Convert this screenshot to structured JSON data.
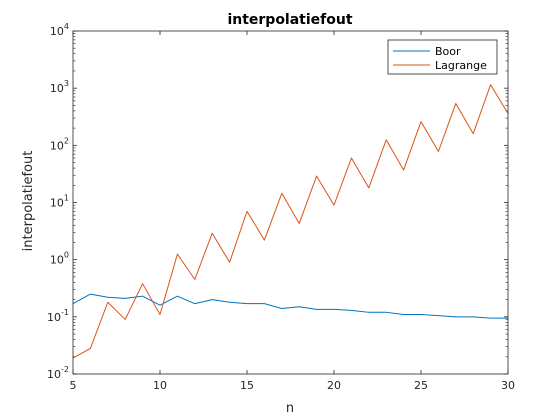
{
  "chart_data": {
    "type": "line",
    "title": "interpolatiefout",
    "xlabel": "n",
    "ylabel": "interpolatiefout",
    "xlim": [
      5,
      30
    ],
    "ylim": [
      0.01,
      10000
    ],
    "yscale": "log",
    "grid": false,
    "legend_position": "top-right",
    "x_ticks": [
      "5",
      "10",
      "15",
      "20",
      "25",
      "30"
    ],
    "y_tick_bases": [
      "10",
      "10",
      "10",
      "10",
      "10",
      "10",
      "10"
    ],
    "y_tick_exponents": [
      "-2",
      "-1",
      "0",
      "1",
      "2",
      "3",
      "4"
    ],
    "x": [
      5,
      6,
      7,
      8,
      9,
      10,
      11,
      12,
      13,
      14,
      15,
      16,
      17,
      18,
      19,
      20,
      21,
      22,
      23,
      24,
      25,
      26,
      27,
      28,
      29,
      30
    ],
    "series": [
      {
        "name": "Boor",
        "color": "#0072BD",
        "values": [
          0.17,
          0.25,
          0.22,
          0.21,
          0.23,
          0.16,
          0.23,
          0.17,
          0.2,
          0.18,
          0.17,
          0.17,
          0.14,
          0.15,
          0.135,
          0.135,
          0.13,
          0.12,
          0.12,
          0.11,
          0.11,
          0.105,
          0.1,
          0.1,
          0.095,
          0.095
        ]
      },
      {
        "name": "Lagrange",
        "color": "#D95319",
        "values": [
          0.019,
          0.028,
          0.18,
          0.09,
          0.38,
          0.11,
          1.25,
          0.45,
          2.9,
          0.9,
          7,
          2.2,
          14.5,
          4.3,
          29,
          9,
          60,
          18,
          125,
          37,
          260,
          78,
          540,
          160,
          1150,
          360
        ]
      }
    ]
  }
}
